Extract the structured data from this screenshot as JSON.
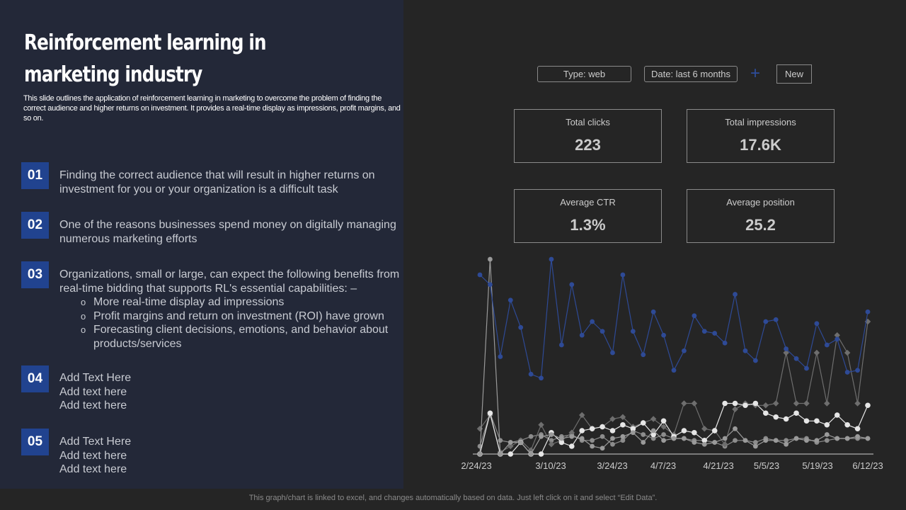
{
  "slide": {
    "title": "Reinforcement learning in marketing industry",
    "description": "This slide outlines the application of reinforcement learning in marketing to overcome the problem of finding the correct audience and higher returns on investment. It provides a real-time display as impressions, profit margins, and so on.",
    "items": [
      {
        "num": "01",
        "text": "Finding the correct audience that will result in higher returns on investment for you or your organization is a difficult task"
      },
      {
        "num": "02",
        "text": "One of the reasons businesses spend money on digitally managing numerous marketing efforts"
      },
      {
        "num": "03",
        "text": "Organizations, small or large, can expect the following benefits from real-time bidding that supports RL's essential capabilities: –",
        "subs": [
          "More real-time display ad impressions",
          "Profit margins and return on investment (ROI) have grown",
          "Forecasting client decisions, emotions, and behavior about products/services"
        ]
      },
      {
        "num": "04",
        "lines": [
          "Add Text Here",
          "Add text here",
          "Add text here"
        ]
      },
      {
        "num": "05",
        "lines": [
          "Add Text Here",
          "Add text here",
          "Add text here"
        ]
      }
    ],
    "footer": "This graph/chart is linked to excel, and changes automatically based on data. Just left click on it and select “Edit Data”."
  },
  "dashboard": {
    "filters": {
      "type": "Type: web",
      "date": "Date: last 6 months",
      "new": "New"
    },
    "cards": {
      "clicks": {
        "label": "Total clicks",
        "value": "223"
      },
      "impressions": {
        "label": "Total impressions",
        "value": "17.6K"
      },
      "ctr": {
        "label": "Average  CTR",
        "value": "1.3%"
      },
      "position": {
        "label": "Average  position",
        "value": "25.2"
      }
    }
  },
  "colors": {
    "accent": "#21438f",
    "series_blue": "#2e4a96",
    "panel": "#232838",
    "bg": "#252525"
  },
  "chart_data": {
    "type": "line",
    "title": "",
    "x_tick_labels": [
      "2/24/23",
      "3/10/23",
      "3/24/23",
      "4/7/23",
      "4/21/23",
      "5/5/23",
      "5/19/23",
      "6/12/23"
    ],
    "xlabel": "",
    "ylabel": "",
    "grid": false,
    "legend": "none",
    "note": "Values are relative heights (0 = baseline, 100 = top of plot area) estimated from pixels; 39 points per series",
    "series": [
      {
        "name": "Series 1 (blue)",
        "color": "#2e4a96",
        "values": [
          92,
          87,
          50,
          79,
          65,
          41,
          39,
          100,
          56,
          87,
          61,
          68,
          63,
          52,
          92,
          63,
          51,
          73,
          61,
          43,
          53,
          71,
          63,
          62,
          57,
          82,
          53,
          48,
          68,
          69,
          54,
          49,
          44,
          67,
          56,
          59,
          42,
          43,
          73
        ]
      },
      {
        "name": "Series 2 (light gray)",
        "color": "#9a9a9a",
        "values": [
          0,
          100,
          0,
          6,
          6,
          0,
          9,
          10,
          8,
          9,
          8,
          4,
          3,
          8,
          9,
          11,
          6,
          12,
          7,
          8,
          8,
          6,
          5,
          6,
          8,
          13,
          7,
          4,
          7,
          7,
          5,
          8,
          7,
          7,
          10,
          8,
          8,
          9,
          8
        ]
      },
      {
        "name": "Series 3 (dark gray)",
        "color": "#6e6e6e",
        "values": [
          13,
          20,
          1,
          4,
          7,
          2,
          15,
          5,
          7,
          11,
          20,
          13,
          14,
          18,
          19,
          14,
          16,
          18,
          14,
          10,
          26,
          26,
          13,
          12,
          5,
          23,
          26,
          25,
          25,
          26,
          52,
          26,
          26,
          52,
          26,
          61,
          52,
          26,
          68
        ]
      },
      {
        "name": "Series 4 (white)",
        "color": "#e6e6e6",
        "values": [
          0,
          21,
          0,
          0,
          6,
          0,
          0,
          11,
          6,
          4,
          12,
          13,
          14,
          12,
          15,
          13,
          16,
          10,
          17,
          9,
          12,
          11,
          7,
          12,
          26,
          26,
          25,
          26,
          21,
          19,
          18,
          21,
          17,
          17,
          15,
          20,
          15,
          13,
          25
        ]
      },
      {
        "name": "Series 5 (mid gray)",
        "color": "#8c8c8c",
        "values": [
          4,
          21,
          7,
          6,
          7,
          9,
          10,
          7,
          9,
          10,
          7,
          7,
          9,
          5,
          7,
          12,
          10,
          8,
          10,
          8,
          8,
          7,
          7,
          6,
          4,
          7,
          7,
          6,
          8,
          7,
          7,
          8,
          8,
          6,
          7,
          8,
          8,
          8,
          8
        ]
      }
    ]
  }
}
